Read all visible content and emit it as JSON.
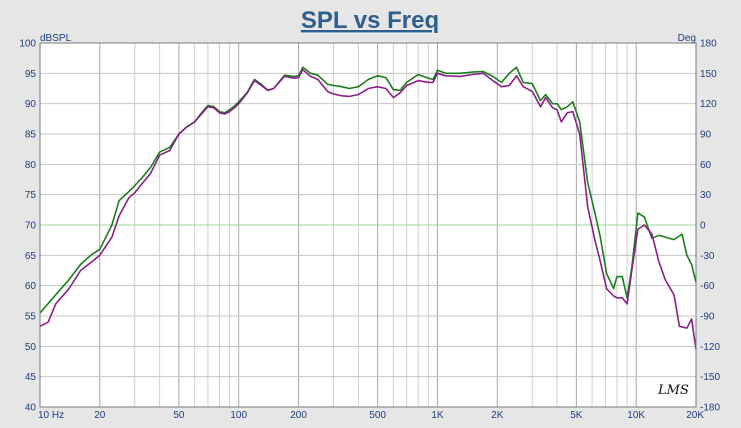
{
  "chart_data": {
    "type": "line",
    "title": "SPL vs Freq",
    "ylabel": "dBSPL",
    "y2label": "Deg",
    "xscale": "log",
    "xlim": [
      10,
      20000
    ],
    "ylim": [
      40,
      100
    ],
    "y2lim": [
      -180,
      180
    ],
    "grid": true,
    "x_tick_labels": [
      {
        "v": 10,
        "label": "10  Hz"
      },
      {
        "v": 20,
        "label": "20"
      },
      {
        "v": 50,
        "label": "50"
      },
      {
        "v": 100,
        "label": "100"
      },
      {
        "v": 200,
        "label": "200"
      },
      {
        "v": 500,
        "label": "500"
      },
      {
        "v": 1000,
        "label": "1K"
      },
      {
        "v": 2000,
        "label": "2K"
      },
      {
        "v": 5000,
        "label": "5K"
      },
      {
        "v": 10000,
        "label": "10K"
      },
      {
        "v": 20000,
        "label": "20K"
      }
    ],
    "y_ticks": [
      100,
      95,
      90,
      85,
      80,
      75,
      70,
      65,
      60,
      55,
      50,
      45,
      40
    ],
    "y2_ticks": [
      180,
      150,
      120,
      90,
      60,
      30,
      0,
      -30,
      -60,
      -90,
      -120,
      -150,
      -180
    ],
    "series": [
      {
        "color": "#1a7f1a",
        "points": [
          [
            10,
            55.5
          ],
          [
            12,
            58.5
          ],
          [
            14,
            61
          ],
          [
            16,
            63.5
          ],
          [
            18,
            65
          ],
          [
            20,
            66
          ],
          [
            23,
            70
          ],
          [
            25,
            74
          ],
          [
            28,
            75.5
          ],
          [
            30,
            76.5
          ],
          [
            33,
            78
          ],
          [
            36,
            79.5
          ],
          [
            40,
            82
          ],
          [
            45,
            82.8
          ],
          [
            50,
            85
          ],
          [
            55,
            86.2
          ],
          [
            60,
            87
          ],
          [
            65,
            88.5
          ],
          [
            70,
            89.7
          ],
          [
            75,
            89.5
          ],
          [
            80,
            88.7
          ],
          [
            85,
            88.5
          ],
          [
            90,
            89
          ],
          [
            95,
            89.6
          ],
          [
            100,
            90.3
          ],
          [
            110,
            91.8
          ],
          [
            120,
            94
          ],
          [
            130,
            93.2
          ],
          [
            140,
            92.2
          ],
          [
            150,
            92.5
          ],
          [
            170,
            94.7
          ],
          [
            190,
            94.5
          ],
          [
            200,
            94.6
          ],
          [
            210,
            96
          ],
          [
            230,
            95
          ],
          [
            250,
            94.7
          ],
          [
            280,
            93.2
          ],
          [
            300,
            93
          ],
          [
            330,
            92.8
          ],
          [
            360,
            92.5
          ],
          [
            400,
            92.8
          ],
          [
            450,
            94
          ],
          [
            500,
            94.6
          ],
          [
            550,
            94.3
          ],
          [
            600,
            92.3
          ],
          [
            650,
            92.2
          ],
          [
            700,
            93.5
          ],
          [
            800,
            94.8
          ],
          [
            900,
            94.2
          ],
          [
            950,
            94
          ],
          [
            1000,
            95.5
          ],
          [
            1100,
            95
          ],
          [
            1300,
            95
          ],
          [
            1500,
            95.2
          ],
          [
            1700,
            95.3
          ],
          [
            1900,
            94.5
          ],
          [
            2100,
            93.5
          ],
          [
            2300,
            95
          ],
          [
            2500,
            96
          ],
          [
            2700,
            93.5
          ],
          [
            3000,
            93.3
          ],
          [
            3300,
            90.5
          ],
          [
            3500,
            91.5
          ],
          [
            3800,
            90
          ],
          [
            4000,
            90
          ],
          [
            4200,
            89
          ],
          [
            4500,
            89.5
          ],
          [
            4800,
            90.3
          ],
          [
            5200,
            87
          ],
          [
            5700,
            77
          ],
          [
            6200,
            72
          ],
          [
            6600,
            68
          ],
          [
            7100,
            62
          ],
          [
            7700,
            59.5
          ],
          [
            8000,
            61.5
          ],
          [
            8500,
            61.5
          ],
          [
            9000,
            58
          ],
          [
            9500,
            63
          ],
          [
            10200,
            72
          ],
          [
            11000,
            71.3
          ],
          [
            12000,
            67.8
          ],
          [
            13000,
            68.3
          ],
          [
            14000,
            68
          ],
          [
            15500,
            67.6
          ],
          [
            17000,
            68.5
          ],
          [
            18000,
            65
          ],
          [
            19000,
            63.5
          ],
          [
            20000,
            60.5
          ]
        ]
      },
      {
        "color": "#8a1f8a",
        "points": [
          [
            10,
            53.3
          ],
          [
            11,
            54
          ],
          [
            12,
            57
          ],
          [
            14,
            59.5
          ],
          [
            16,
            62.5
          ],
          [
            18,
            63.8
          ],
          [
            20,
            65
          ],
          [
            23,
            68
          ],
          [
            25,
            71.5
          ],
          [
            28,
            74.5
          ],
          [
            30,
            75.3
          ],
          [
            33,
            77
          ],
          [
            36,
            78.5
          ],
          [
            40,
            81.5
          ],
          [
            45,
            82.3
          ],
          [
            50,
            85
          ],
          [
            55,
            86.2
          ],
          [
            60,
            87
          ],
          [
            65,
            88.3
          ],
          [
            70,
            89.5
          ],
          [
            75,
            89.3
          ],
          [
            80,
            88.5
          ],
          [
            85,
            88.3
          ],
          [
            90,
            88.7
          ],
          [
            95,
            89.3
          ],
          [
            100,
            90
          ],
          [
            110,
            91.7
          ],
          [
            120,
            93.8
          ],
          [
            130,
            93
          ],
          [
            140,
            92.2
          ],
          [
            150,
            92.5
          ],
          [
            170,
            94.5
          ],
          [
            190,
            94.2
          ],
          [
            200,
            94.3
          ],
          [
            210,
            95.6
          ],
          [
            230,
            94.5
          ],
          [
            250,
            94
          ],
          [
            280,
            92
          ],
          [
            300,
            91.6
          ],
          [
            330,
            91.3
          ],
          [
            360,
            91.2
          ],
          [
            400,
            91.5
          ],
          [
            450,
            92.5
          ],
          [
            500,
            92.8
          ],
          [
            550,
            92.5
          ],
          [
            600,
            91
          ],
          [
            650,
            91.8
          ],
          [
            700,
            93
          ],
          [
            800,
            93.8
          ],
          [
            900,
            93.5
          ],
          [
            950,
            93.5
          ],
          [
            1000,
            95
          ],
          [
            1100,
            94.6
          ],
          [
            1300,
            94.5
          ],
          [
            1500,
            94.8
          ],
          [
            1700,
            95
          ],
          [
            1900,
            93.8
          ],
          [
            2100,
            92.8
          ],
          [
            2300,
            93
          ],
          [
            2500,
            94.6
          ],
          [
            2700,
            92.8
          ],
          [
            3000,
            92
          ],
          [
            3300,
            89.5
          ],
          [
            3500,
            91
          ],
          [
            3800,
            89.3
          ],
          [
            4000,
            89
          ],
          [
            4200,
            87
          ],
          [
            4500,
            88.5
          ],
          [
            4800,
            88.7
          ],
          [
            5200,
            85
          ],
          [
            5700,
            73
          ],
          [
            6200,
            67.5
          ],
          [
            6600,
            64
          ],
          [
            7100,
            59.5
          ],
          [
            7700,
            58.3
          ],
          [
            8000,
            58
          ],
          [
            8500,
            58
          ],
          [
            9000,
            57
          ],
          [
            9500,
            62.5
          ],
          [
            10200,
            69.3
          ],
          [
            11000,
            70
          ],
          [
            12000,
            68.5
          ],
          [
            13000,
            64
          ],
          [
            14000,
            61
          ],
          [
            15500,
            58.5
          ],
          [
            16500,
            53.3
          ],
          [
            18000,
            53
          ],
          [
            19000,
            54.5
          ],
          [
            20000,
            49.5
          ]
        ]
      }
    ]
  },
  "watermark": "LMS"
}
